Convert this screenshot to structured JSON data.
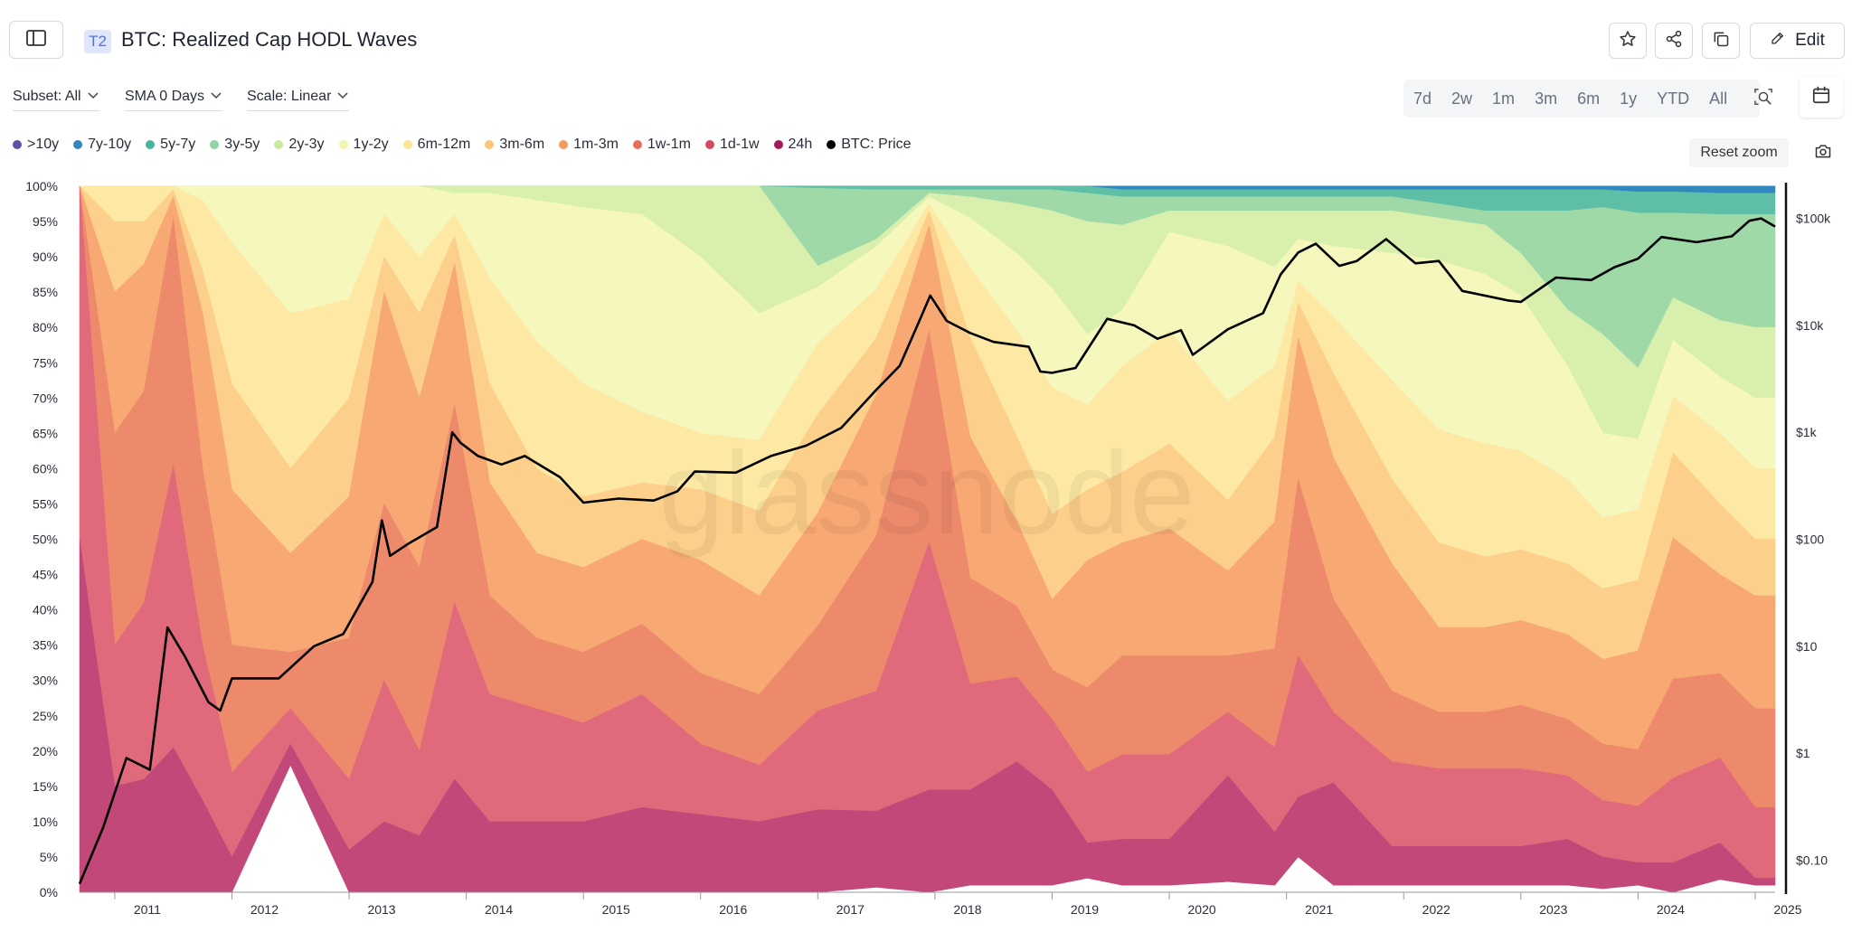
{
  "header": {
    "tier_badge": "T2",
    "title": "BTC: Realized Cap HODL Waves",
    "edit_label": "Edit"
  },
  "controls": {
    "subset": "Subset: All",
    "sma": "SMA 0 Days",
    "scale": "Scale: Linear",
    "ranges": [
      "7d",
      "2w",
      "1m",
      "3m",
      "6m",
      "1y",
      "YTD",
      "All"
    ],
    "reset_zoom": "Reset zoom"
  },
  "watermark": "glassnode",
  "colors": {
    "gt10y": "#5e4fa2",
    "7y10y": "#3288bd",
    "5y7y": "#66c2a5",
    "3y5y": "#99d594",
    "2y3y": "#d6ee9b",
    "1y2y": "#f6f9b4",
    "6m12m": "#fee59a",
    "3m6m": "#fdc980",
    "1m3m": "#f8a066",
    "1w1m": "#ef7d5d",
    "1d1w": "#da5f7a",
    "24h": "#b83779",
    "price": "#000000"
  },
  "chart_data": {
    "type": "area",
    "stacked": true,
    "percent": true,
    "x_axis": {
      "ticks": [
        "2011",
        "2012",
        "2013",
        "2014",
        "2015",
        "2016",
        "2017",
        "2018",
        "2019",
        "2020",
        "2021",
        "2022",
        "2023",
        "2024",
        "2025"
      ]
    },
    "y_left": {
      "ylim": [
        0,
        100
      ],
      "ticks": [
        "0%",
        "5%",
        "10%",
        "15%",
        "20%",
        "25%",
        "30%",
        "35%",
        "40%",
        "45%",
        "50%",
        "55%",
        "60%",
        "65%",
        "70%",
        "75%",
        "80%",
        "85%",
        "90%",
        "95%",
        "100%"
      ]
    },
    "y_right": {
      "scale": "log",
      "ylim": [
        0.05,
        200000
      ],
      "ticks": [
        {
          "value": 0.1,
          "label": "$0.10"
        },
        {
          "value": 1,
          "label": "$1"
        },
        {
          "value": 10,
          "label": "$10"
        },
        {
          "value": 100,
          "label": "$100"
        },
        {
          "value": 1000,
          "label": "$1k"
        },
        {
          "value": 10000,
          "label": "$10k"
        },
        {
          "value": 100000,
          "label": "$100k"
        }
      ]
    },
    "x": [
      2010.7,
      2011.0,
      2011.25,
      2011.5,
      2011.75,
      2012.0,
      2012.5,
      2013.0,
      2013.3,
      2013.6,
      2013.9,
      2014.2,
      2014.6,
      2015.0,
      2015.5,
      2016.0,
      2016.5,
      2017.0,
      2017.5,
      2017.95,
      2018.3,
      2018.7,
      2019.0,
      2019.3,
      2019.6,
      2020.0,
      2020.5,
      2020.9,
      2021.1,
      2021.4,
      2021.9,
      2022.3,
      2022.7,
      2023.0,
      2023.4,
      2023.7,
      2024.0,
      2024.3,
      2024.7,
      2025.0,
      2025.17
    ],
    "series": [
      {
        "name": ">10y",
        "values": [
          0,
          0,
          0,
          0,
          0,
          0,
          0,
          0,
          0,
          0,
          0,
          0,
          0,
          0,
          0,
          0,
          0,
          0,
          0,
          0,
          0,
          0,
          0,
          0,
          0,
          0,
          0,
          0,
          0,
          0,
          0,
          0,
          0,
          0,
          0,
          0,
          0,
          0,
          0,
          0,
          0
        ]
      },
      {
        "name": "7y-10y",
        "values": [
          0,
          0,
          0,
          0,
          0,
          0,
          0,
          0,
          0,
          0,
          0,
          0,
          0,
          0,
          0,
          0,
          0,
          0,
          0,
          0,
          0,
          0,
          0,
          0,
          0.5,
          0.5,
          0.5,
          0.5,
          0.5,
          0.5,
          0.5,
          0.5,
          0.5,
          0.5,
          0.5,
          0.5,
          0.8,
          0.8,
          1,
          1,
          1
        ]
      },
      {
        "name": "5y-7y",
        "values": [
          0,
          0,
          0,
          0,
          0,
          0,
          0,
          0,
          0,
          0,
          0,
          0,
          0,
          0,
          0,
          0,
          0,
          0.3,
          0.5,
          0.5,
          0.5,
          0.5,
          0.5,
          1,
          1,
          1,
          1,
          1,
          1,
          1,
          1,
          2,
          3,
          3,
          3,
          2.5,
          3,
          3,
          3,
          3,
          3
        ]
      },
      {
        "name": "3y-5y",
        "values": [
          0,
          0,
          0,
          0,
          0,
          0,
          0,
          0,
          0,
          0,
          0,
          0,
          0,
          0,
          0,
          0,
          0,
          11,
          7,
          0.5,
          1,
          2,
          3,
          4,
          4,
          2,
          2,
          2,
          2,
          2,
          2,
          2,
          2,
          6,
          14,
          18,
          22,
          12,
          15,
          16,
          16
        ]
      },
      {
        "name": "2y-3y",
        "values": [
          0,
          0,
          0,
          0,
          0,
          0,
          0,
          0,
          0,
          0,
          1,
          1,
          2,
          3,
          4,
          10,
          18,
          3,
          1,
          0.5,
          3,
          7,
          11,
          16,
          12,
          3,
          5,
          8,
          4,
          5,
          6,
          6,
          7,
          6,
          8,
          14,
          10,
          6,
          8,
          10,
          10
        ]
      },
      {
        "name": "1y-2y",
        "values": [
          0,
          0,
          0,
          0,
          2,
          8,
          18,
          16,
          4,
          10,
          3,
          12,
          20,
          25,
          28,
          25,
          18,
          8,
          6,
          1,
          7,
          11,
          14,
          10,
          8,
          14,
          22,
          14,
          6,
          10,
          18,
          24,
          24,
          22,
          16,
          12,
          10,
          8,
          8,
          10,
          10
        ]
      },
      {
        "name": "6m-12m",
        "values": [
          0,
          5,
          5,
          0.5,
          10,
          20,
          22,
          14,
          6,
          8,
          3,
          15,
          18,
          16,
          10,
          8,
          10,
          10,
          7,
          1,
          10,
          15,
          18,
          12,
          15,
          16,
          14,
          10,
          3,
          8,
          14,
          16,
          16,
          14,
          12,
          10,
          10,
          8,
          10,
          10,
          10
        ]
      },
      {
        "name": "3m-6m",
        "values": [
          0,
          10,
          6,
          1,
          6,
          15,
          12,
          14,
          5,
          12,
          4,
          14,
          12,
          10,
          8,
          10,
          12,
          14,
          8,
          2,
          14,
          12,
          12,
          10,
          10,
          12,
          10,
          12,
          5,
          12,
          12,
          12,
          10,
          10,
          10,
          10,
          10,
          12,
          10,
          8,
          8
        ]
      },
      {
        "name": "1m-3m",
        "values": [
          0,
          20,
          18,
          3,
          22,
          22,
          14,
          20,
          30,
          24,
          20,
          16,
          12,
          12,
          12,
          16,
          14,
          16,
          20,
          15,
          20,
          12,
          10,
          18,
          16,
          18,
          12,
          18,
          20,
          20,
          18,
          12,
          12,
          12,
          12,
          12,
          14,
          20,
          14,
          16,
          16
        ]
      },
      {
        "name": "1w-1m",
        "values": [
          0,
          30,
          30,
          35,
          25,
          18,
          8,
          20,
          25,
          26,
          28,
          14,
          10,
          10,
          10,
          10,
          10,
          12,
          22,
          30,
          15,
          10,
          7,
          12,
          14,
          14,
          8,
          14,
          25,
          16,
          10,
          8,
          8,
          9,
          8,
          8,
          8,
          14,
          12,
          14,
          14
        ]
      },
      {
        "name": "1d-1w",
        "values": [
          50,
          20,
          25,
          40,
          22,
          12,
          5,
          10,
          20,
          12,
          25,
          18,
          16,
          14,
          16,
          10,
          8,
          14,
          17,
          35,
          15,
          12,
          10,
          10,
          12,
          12,
          9,
          12,
          20,
          10,
          12,
          11,
          11,
          11,
          9,
          8,
          8,
          12,
          12,
          10,
          10
        ]
      },
      {
        "name": "24h",
        "values": [
          50,
          15,
          16,
          20.5,
          13,
          5,
          3,
          6,
          10,
          8,
          16,
          10,
          10,
          10,
          12,
          11,
          10,
          11.7,
          10.8,
          14.5,
          13.5,
          17.5,
          13.5,
          5,
          6.5,
          6.5,
          15,
          7.5,
          8.5,
          14.5,
          5.5,
          5.5,
          5.5,
          5.5,
          6.5,
          4.5,
          3.2,
          4.2,
          5.2,
          1,
          1
        ]
      }
    ],
    "price": {
      "name": "BTC: Price",
      "x": [
        2010.7,
        2010.9,
        2011.1,
        2011.3,
        2011.45,
        2011.6,
        2011.8,
        2011.9,
        2012.0,
        2012.4,
        2012.7,
        2012.95,
        2013.2,
        2013.28,
        2013.35,
        2013.5,
        2013.75,
        2013.88,
        2013.95,
        2014.1,
        2014.3,
        2014.5,
        2014.8,
        2015.0,
        2015.3,
        2015.6,
        2015.8,
        2015.95,
        2016.3,
        2016.6,
        2016.9,
        2017.2,
        2017.5,
        2017.7,
        2017.85,
        2017.96,
        2018.1,
        2018.3,
        2018.5,
        2018.8,
        2018.9,
        2019.0,
        2019.2,
        2019.47,
        2019.7,
        2019.9,
        2020.1,
        2020.2,
        2020.5,
        2020.8,
        2020.95,
        2021.1,
        2021.25,
        2021.45,
        2021.6,
        2021.85,
        2022.1,
        2022.3,
        2022.5,
        2022.9,
        2023.0,
        2023.3,
        2023.6,
        2023.8,
        2024.0,
        2024.2,
        2024.5,
        2024.8,
        2024.95,
        2025.05,
        2025.17
      ],
      "values": [
        0.06,
        0.2,
        0.9,
        0.7,
        15,
        8,
        3,
        2.5,
        5,
        5,
        10,
        13,
        40,
        150,
        70,
        90,
        130,
        1000,
        800,
        600,
        500,
        600,
        380,
        220,
        240,
        230,
        280,
        430,
        420,
        600,
        750,
        1100,
        2500,
        4200,
        10000,
        19000,
        11000,
        8500,
        7000,
        6300,
        3700,
        3600,
        4000,
        11500,
        10000,
        7500,
        9000,
        5300,
        9200,
        13000,
        30000,
        48000,
        58000,
        36000,
        40000,
        64000,
        38000,
        40000,
        21000,
        17000,
        16600,
        28000,
        26500,
        35000,
        42000,
        67000,
        60000,
        68000,
        95000,
        100000,
        84000
      ]
    }
  }
}
